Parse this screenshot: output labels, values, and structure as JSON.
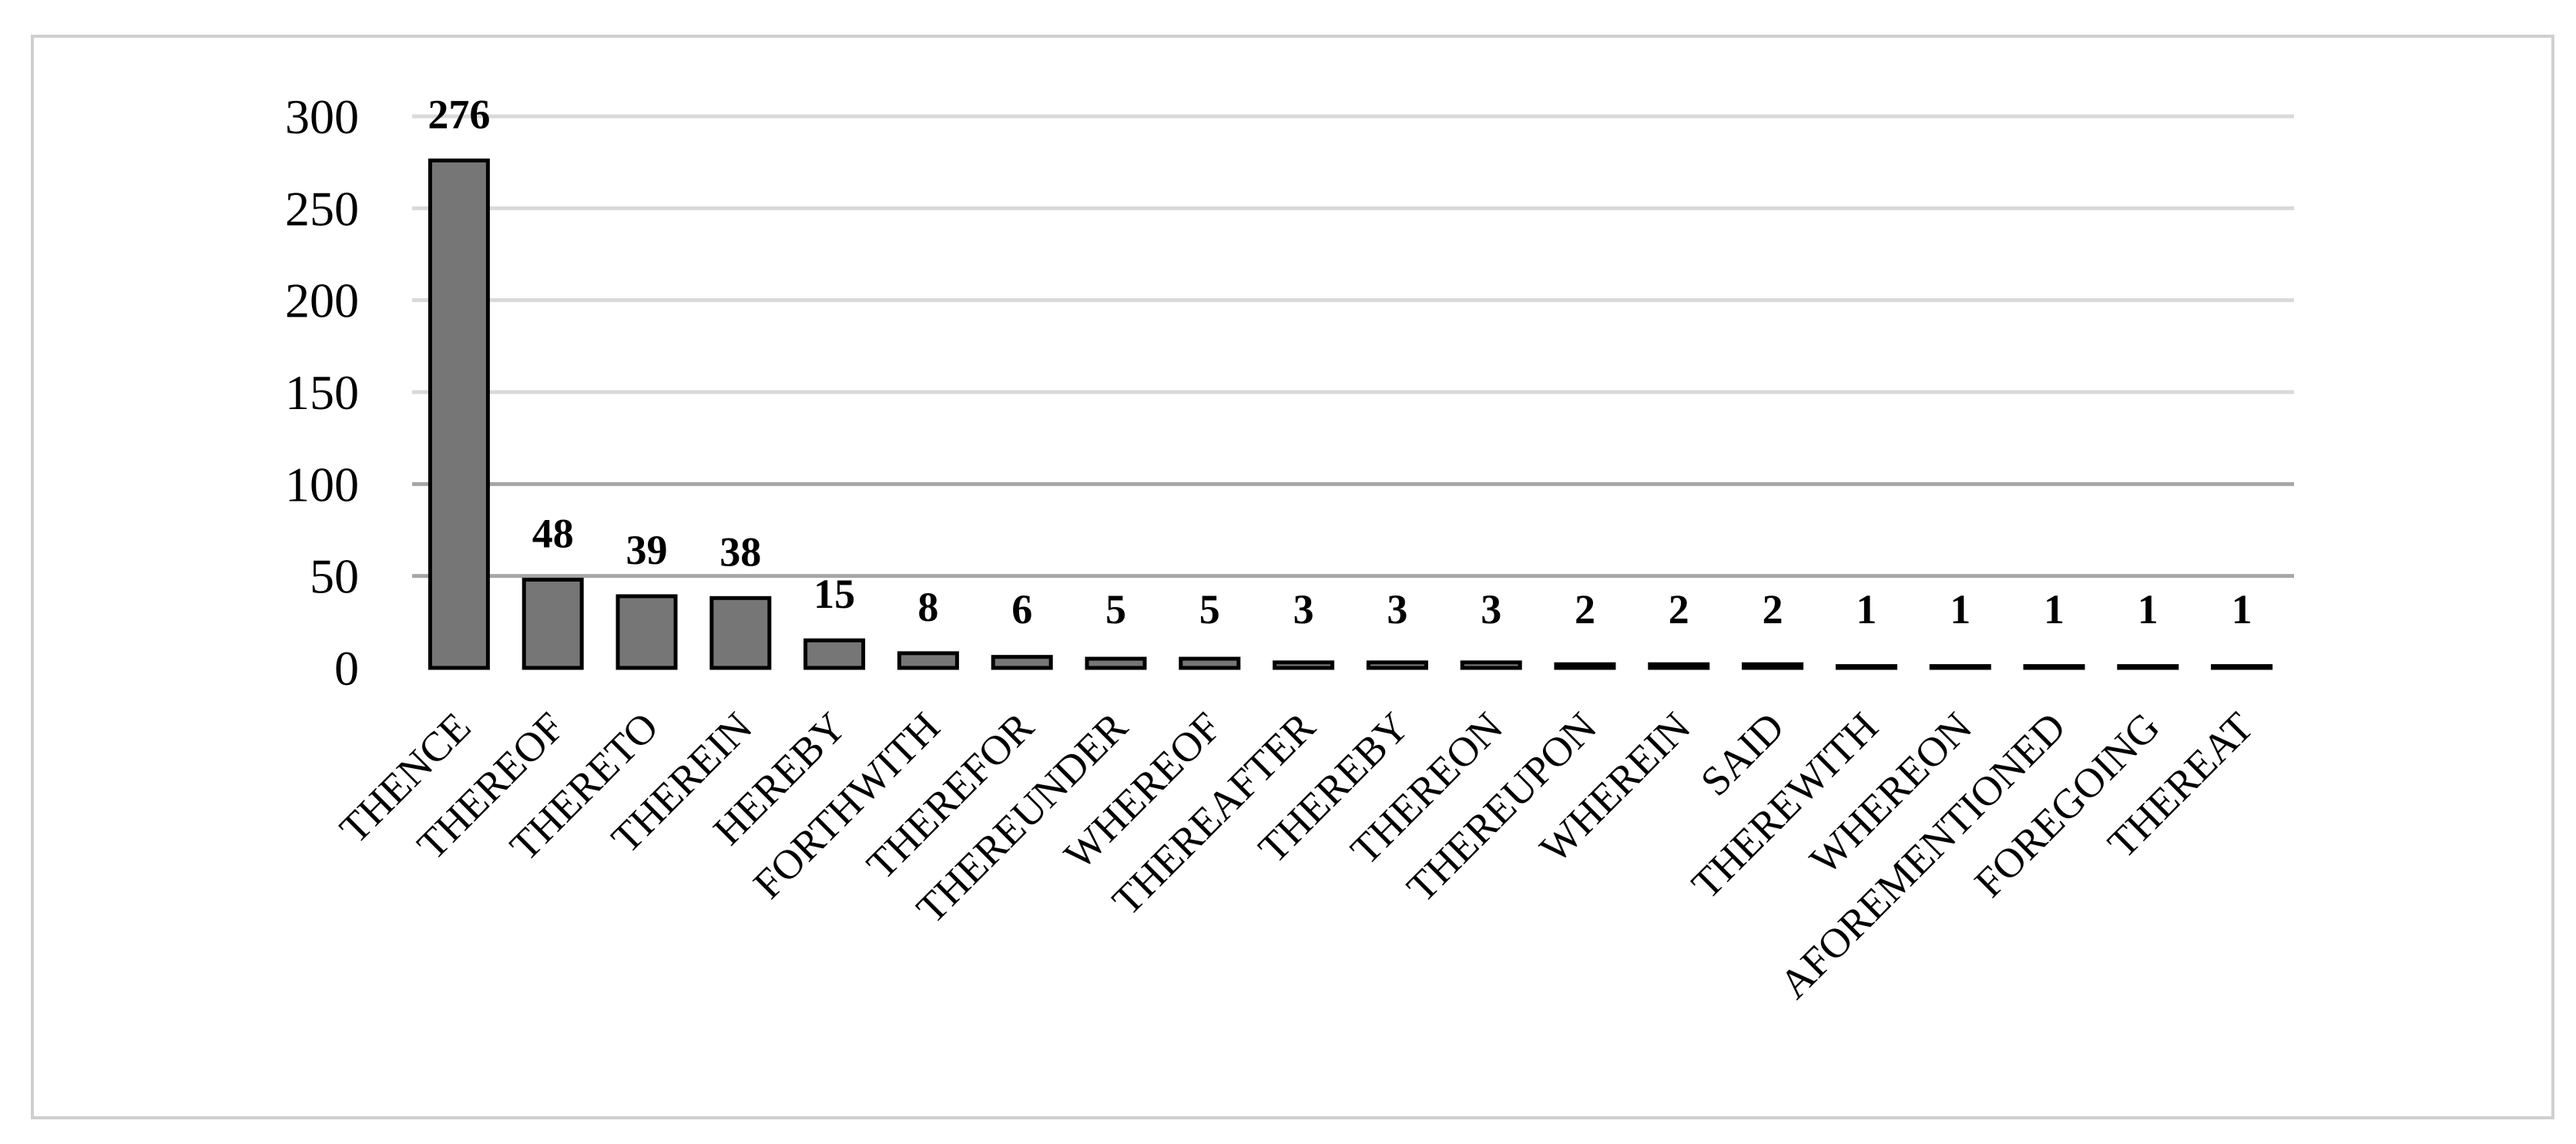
{
  "chart_data": {
    "type": "bar",
    "categories": [
      "THENCE",
      "THEREOF",
      "THERETO",
      "THEREIN",
      "HEREBY",
      "FORTHWITH",
      "THEREFOR",
      "THEREUNDER",
      "WHEREOF",
      "THEREAFTER",
      "THEREBY",
      "THEREON",
      "THEREUPON",
      "WHEREIN",
      "SAID",
      "THEREWITH",
      "WHEREON",
      "AFOREMENTIONED",
      "FOREGOING",
      "THEREAT"
    ],
    "values": [
      276,
      48,
      39,
      38,
      15,
      8,
      6,
      5,
      5,
      3,
      3,
      3,
      2,
      2,
      2,
      1,
      1,
      1,
      1,
      1
    ],
    "data_labels": [
      "276",
      "48",
      "39",
      "38",
      "15",
      "8",
      "6",
      "5",
      "5",
      "3",
      "3",
      "3",
      "2",
      "2",
      "2",
      "1",
      "1",
      "1",
      "1",
      "1"
    ],
    "y_ticks": [
      "0",
      "50",
      "100",
      "150",
      "200",
      "250",
      "300"
    ],
    "ylim": [
      0,
      300
    ],
    "grid": true,
    "legend": "none",
    "title": "",
    "xlabel": "",
    "ylabel": "",
    "colors": {
      "bar_fill": "#767676",
      "bar_stroke": "#000000",
      "gridline": "#d9d9d9",
      "gridline_dark": "#a6a6a6",
      "frame": "#cfcfcf"
    }
  }
}
